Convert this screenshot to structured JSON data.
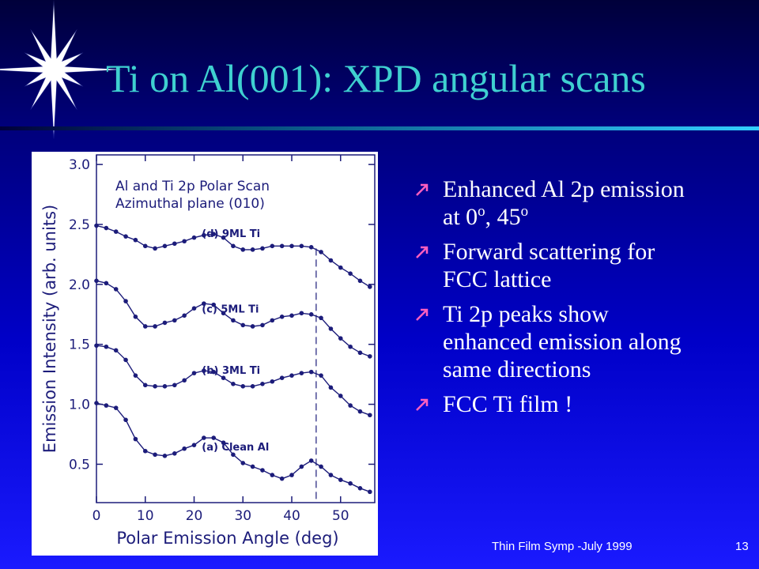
{
  "slide": {
    "title": "Ti on Al(001): XPD angular scans",
    "bullets": [
      [
        "Enhanced Al 2p emission at 0",
        {
          "sup": "o"
        },
        ", 45",
        {
          "sup": "o"
        }
      ],
      [
        "Forward scattering for FCC lattice"
      ],
      [
        "Ti 2p peaks show enhanced emission along same directions"
      ],
      [
        "FCC Ti film !"
      ]
    ],
    "footer": "Thin Film  Symp -July 1999",
    "page_number": "13"
  },
  "chart_data": {
    "type": "line",
    "title": [
      "Al and Ti 2p Polar Scan",
      "Azimuthal plane (010)"
    ],
    "xlabel": "Polar Emission Angle (deg)",
    "ylabel": "Emission Intensity (arb. units)",
    "x": [
      0,
      2,
      4,
      6,
      8,
      10,
      12,
      14,
      16,
      18,
      20,
      22,
      24,
      26,
      28,
      30,
      32,
      34,
      36,
      38,
      40,
      42,
      44,
      46,
      48,
      50,
      52,
      54,
      56
    ],
    "series": [
      {
        "name": "(d) 9ML Ti",
        "color": "#1c1c7a",
        "values": [
          2.49,
          2.47,
          2.44,
          2.4,
          2.37,
          2.32,
          2.3,
          2.32,
          2.34,
          2.36,
          2.39,
          2.41,
          2.42,
          2.39,
          2.32,
          2.29,
          2.29,
          2.3,
          2.32,
          2.32,
          2.32,
          2.32,
          2.31,
          2.27,
          2.2,
          2.14,
          2.09,
          2.03,
          1.98
        ]
      },
      {
        "name": "(c) 5ML Ti",
        "color": "#1c1c7a",
        "values": [
          2.03,
          2.01,
          1.96,
          1.86,
          1.73,
          1.65,
          1.65,
          1.68,
          1.7,
          1.74,
          1.8,
          1.84,
          1.83,
          1.76,
          1.7,
          1.66,
          1.65,
          1.66,
          1.7,
          1.73,
          1.74,
          1.76,
          1.75,
          1.72,
          1.63,
          1.55,
          1.48,
          1.43,
          1.4
        ]
      },
      {
        "name": "(b) 3ML Ti",
        "color": "#1c1c7a",
        "values": [
          1.49,
          1.48,
          1.45,
          1.37,
          1.24,
          1.16,
          1.15,
          1.15,
          1.16,
          1.2,
          1.26,
          1.28,
          1.27,
          1.22,
          1.17,
          1.15,
          1.15,
          1.17,
          1.19,
          1.22,
          1.24,
          1.26,
          1.27,
          1.24,
          1.14,
          1.07,
          0.99,
          0.94,
          0.91
        ]
      },
      {
        "name": "(a) Clean Al",
        "color": "#1c1c7a",
        "values": [
          1.01,
          0.99,
          0.97,
          0.87,
          0.71,
          0.61,
          0.58,
          0.57,
          0.59,
          0.63,
          0.66,
          0.72,
          0.72,
          0.68,
          0.58,
          0.51,
          0.48,
          0.45,
          0.41,
          0.38,
          0.41,
          0.48,
          0.53,
          0.48,
          0.41,
          0.37,
          0.34,
          0.3,
          0.27
        ]
      }
    ],
    "reference_line_x": 45,
    "xlim": [
      0,
      57
    ],
    "ylim": [
      0.18,
      3.08
    ],
    "xticks": [
      0,
      10,
      20,
      30,
      40,
      50
    ],
    "yticks": [
      0.5,
      {
        "value": 1,
        "label": "1.0"
      },
      1.5,
      {
        "value": 2,
        "label": "2.0"
      },
      2.5,
      {
        "value": 3,
        "label": "3.0"
      }
    ]
  }
}
